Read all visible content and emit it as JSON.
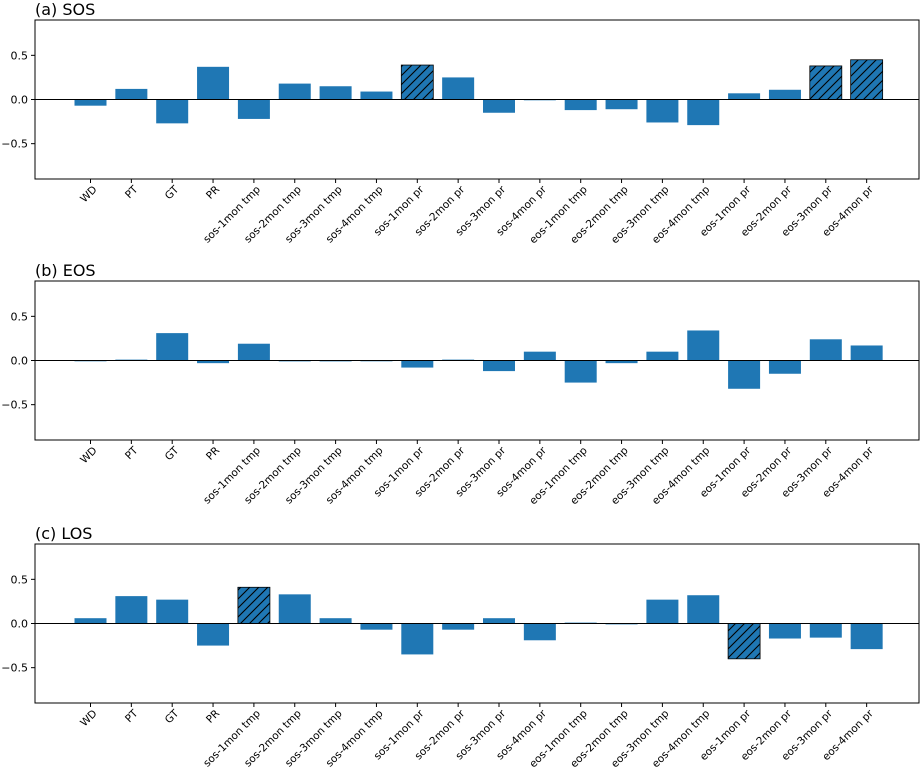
{
  "chart_data": [
    {
      "type": "bar",
      "title": "(a) SOS",
      "xlabel": "",
      "ylabel": "",
      "ylim": [
        -0.9,
        0.9
      ],
      "yticks": [
        -0.5,
        0.0,
        0.5
      ],
      "ytick_labels": [
        "−0.5",
        "0.0",
        "0.5"
      ],
      "grid": false,
      "bar_color": "#1f77b4",
      "categories": [
        "WD",
        "PT",
        "GT",
        "PR",
        "sos-1mon tmp",
        "sos-2mon tmp",
        "sos-3mon tmp",
        "sos-4mon tmp",
        "sos-1mon pr",
        "sos-2mon pr",
        "sos-3mon pr",
        "sos-4mon pr",
        "eos-1mon tmp",
        "eos-2mon tmp",
        "eos-3mon tmp",
        "eos-4mon tmp",
        "eos-1mon pr",
        "eos-2mon pr",
        "eos-3mon pr",
        "eos-4mon pr"
      ],
      "values": [
        -0.07,
        0.12,
        -0.27,
        0.37,
        -0.22,
        0.18,
        0.15,
        0.09,
        0.39,
        0.25,
        -0.15,
        0.0,
        -0.12,
        -0.11,
        -0.26,
        -0.29,
        0.07,
        0.11,
        0.38,
        0.45
      ],
      "hatched": [
        false,
        false,
        false,
        false,
        false,
        false,
        false,
        false,
        true,
        false,
        false,
        false,
        false,
        false,
        false,
        false,
        false,
        false,
        true,
        true
      ]
    },
    {
      "type": "bar",
      "title": "(b) EOS",
      "xlabel": "",
      "ylabel": "",
      "ylim": [
        -0.9,
        0.9
      ],
      "yticks": [
        -0.5,
        0.0,
        0.5
      ],
      "ytick_labels": [
        "−0.5",
        "0.0",
        "0.5"
      ],
      "grid": false,
      "bar_color": "#1f77b4",
      "categories": [
        "WD",
        "PT",
        "GT",
        "PR",
        "sos-1mon tmp",
        "sos-2mon tmp",
        "sos-3mon tmp",
        "sos-4mon tmp",
        "sos-1mon pr",
        "sos-2mon pr",
        "sos-3mon pr",
        "sos-4mon pr",
        "eos-1mon tmp",
        "eos-2mon tmp",
        "eos-3mon tmp",
        "eos-4mon tmp",
        "eos-1mon pr",
        "eos-2mon pr",
        "eos-3mon pr",
        "eos-4mon pr"
      ],
      "values": [
        0.0,
        0.01,
        0.31,
        -0.03,
        0.19,
        -0.01,
        -0.01,
        0.0,
        -0.08,
        0.01,
        -0.12,
        0.1,
        -0.25,
        -0.03,
        0.1,
        0.34,
        -0.32,
        -0.15,
        0.24,
        0.17
      ],
      "hatched": [
        false,
        false,
        false,
        false,
        false,
        false,
        false,
        false,
        false,
        false,
        false,
        false,
        false,
        false,
        false,
        false,
        false,
        false,
        false,
        false
      ]
    },
    {
      "type": "bar",
      "title": "(c) LOS",
      "xlabel": "",
      "ylabel": "",
      "ylim": [
        -0.9,
        0.9
      ],
      "yticks": [
        -0.5,
        0.0,
        0.5
      ],
      "ytick_labels": [
        "−0.5",
        "0.0",
        "0.5"
      ],
      "grid": false,
      "bar_color": "#1f77b4",
      "categories": [
        "WD",
        "PT",
        "GT",
        "PR",
        "sos-1mon tmp",
        "sos-2mon tmp",
        "sos-3mon tmp",
        "sos-4mon tmp",
        "sos-1mon pr",
        "sos-2mon pr",
        "sos-3mon pr",
        "sos-4mon pr",
        "eos-1mon tmp",
        "eos-2mon tmp",
        "eos-3mon tmp",
        "eos-4mon tmp",
        "eos-1mon pr",
        "eos-2mon pr",
        "eos-3mon pr",
        "eos-4mon pr"
      ],
      "values": [
        0.06,
        0.31,
        0.27,
        -0.25,
        0.41,
        0.33,
        0.06,
        -0.07,
        -0.35,
        -0.07,
        0.06,
        -0.19,
        0.01,
        -0.01,
        0.27,
        0.32,
        -0.4,
        -0.17,
        -0.16,
        -0.29
      ],
      "hatched": [
        false,
        false,
        false,
        false,
        true,
        false,
        false,
        false,
        false,
        false,
        false,
        false,
        false,
        false,
        false,
        false,
        true,
        false,
        false,
        false
      ]
    }
  ]
}
